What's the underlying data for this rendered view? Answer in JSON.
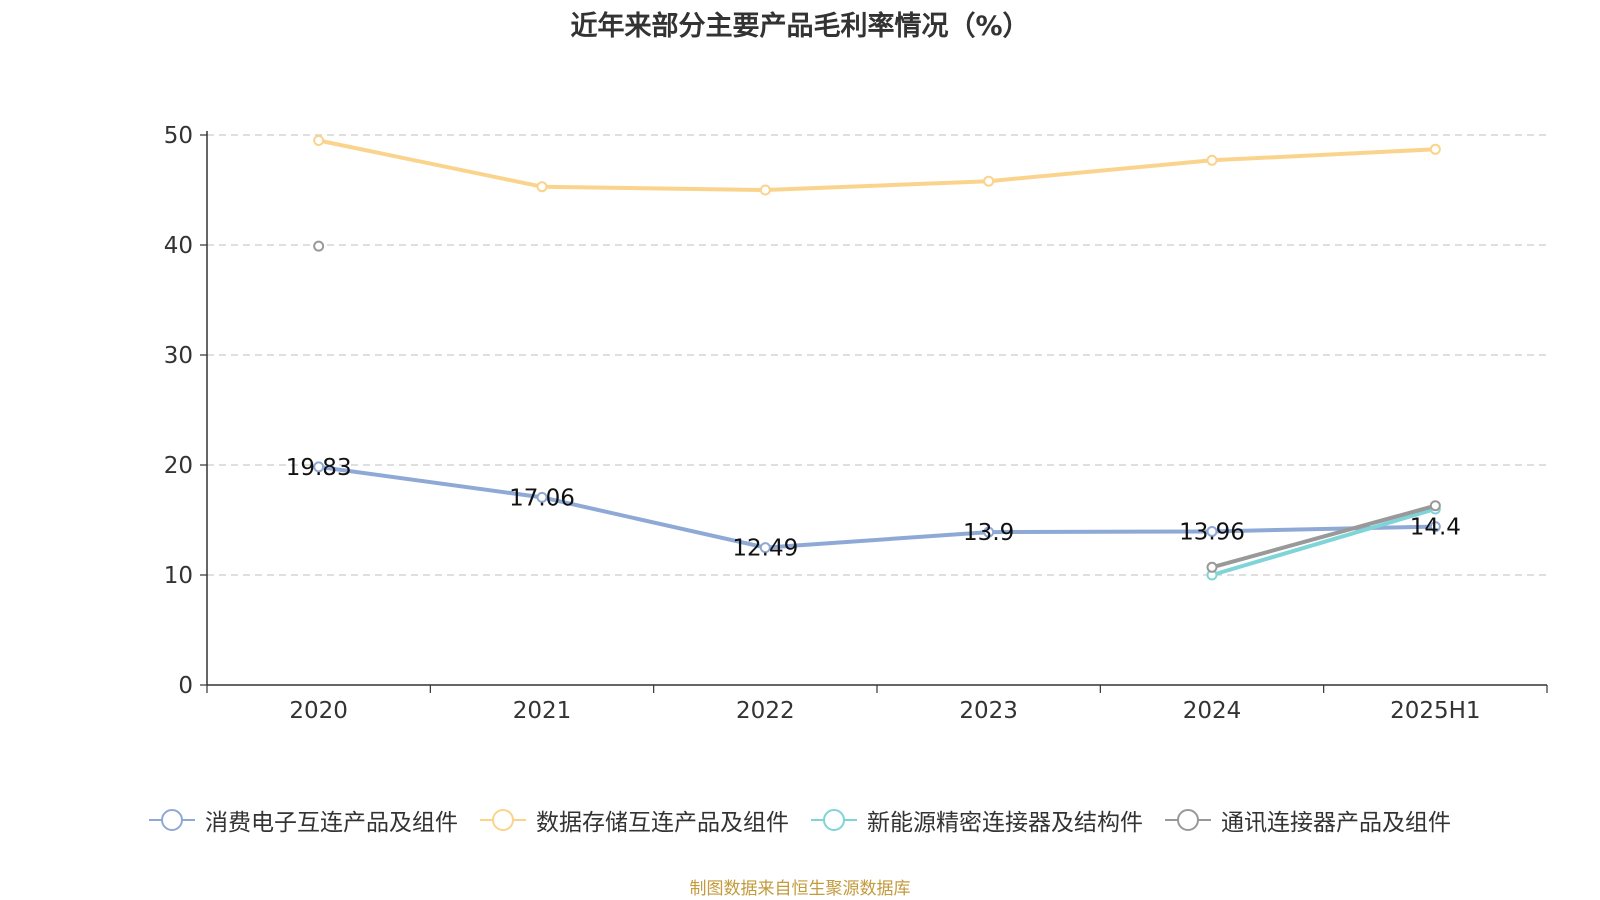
{
  "chart_data": {
    "type": "line",
    "title": "近年来部分主要产品毛利率情况（%）",
    "categories": [
      "2020",
      "2021",
      "2022",
      "2023",
      "2024",
      "2025H1"
    ],
    "ylim": [
      0,
      50
    ],
    "yticks": [
      0,
      10,
      20,
      30,
      40,
      50
    ],
    "grid": true,
    "legend_position": "bottom",
    "series": [
      {
        "name": "消费电子互连产品及组件",
        "color": "#8fa9d6",
        "values": [
          19.83,
          17.06,
          12.49,
          13.9,
          13.96,
          14.4
        ],
        "labels": [
          "19.83",
          "17.06",
          "12.49",
          "13.9",
          "13.96",
          "14.4"
        ]
      },
      {
        "name": "数据存储互连产品及组件",
        "color": "#fad48d",
        "values": [
          49.5,
          45.3,
          45.0,
          45.8,
          47.7,
          48.7
        ]
      },
      {
        "name": "新能源精密连接器及结构件",
        "color": "#7fd4d8",
        "values": [
          null,
          null,
          null,
          null,
          10.0,
          16.0
        ]
      },
      {
        "name": "通讯连接器产品及组件",
        "color": "#999999",
        "values": [
          39.9,
          null,
          null,
          null,
          10.7,
          16.3
        ]
      }
    ]
  },
  "source_note": "制图数据来自恒生聚源数据库"
}
